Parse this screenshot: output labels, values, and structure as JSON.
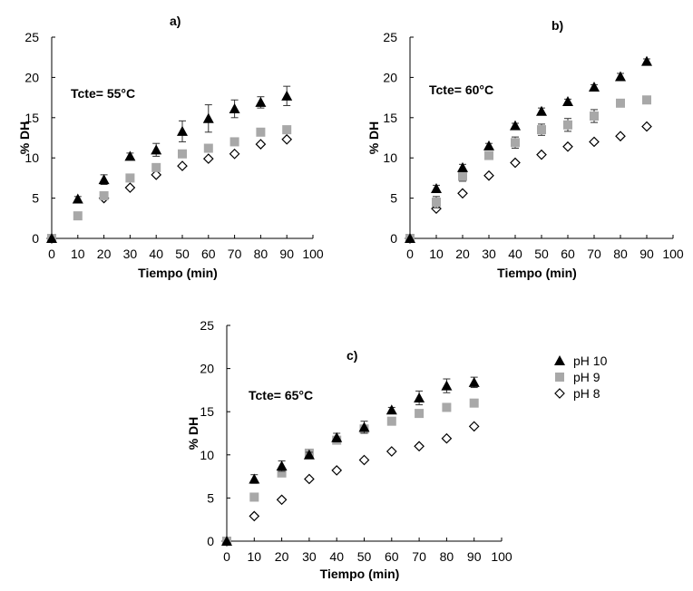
{
  "figure": {
    "legend": {
      "placement": "right of panel c",
      "entries": [
        {
          "label": "pH 10",
          "marker": "filled-triangle",
          "color": "#000000"
        },
        {
          "label": "pH 9",
          "marker": "gray-square",
          "color": "#a8a8a8"
        },
        {
          "label": "pH 8",
          "marker": "open-diamond",
          "color": "#000000"
        }
      ]
    }
  },
  "chart_data": [
    {
      "type": "scatter",
      "panel": "a)",
      "annotation": "Tcte= 55°C",
      "xlabel": "Tiempo (min)",
      "ylabel": "% DH",
      "xlim": [
        0,
        100
      ],
      "ylim": [
        0,
        25
      ],
      "xticks": [
        "0",
        "10",
        "20",
        "30",
        "40",
        "50",
        "60",
        "70",
        "80",
        "90",
        "100"
      ],
      "yticks": [
        "0",
        "5",
        "10",
        "15",
        "20",
        "25"
      ],
      "grid": false,
      "x": [
        0,
        10,
        20,
        30,
        40,
        50,
        60,
        70,
        80,
        90
      ],
      "series": [
        {
          "name": "pH 10",
          "values": [
            0,
            4.9,
            7.3,
            10.2,
            11.0,
            13.3,
            14.9,
            16.1,
            16.9,
            17.7
          ],
          "error": [
            0,
            0.3,
            0.6,
            0.4,
            0.8,
            1.3,
            1.7,
            1.1,
            0.7,
            1.2
          ]
        },
        {
          "name": "pH 9",
          "values": [
            0,
            2.8,
            5.3,
            7.5,
            8.8,
            10.5,
            11.2,
            12.0,
            13.2,
            13.5
          ],
          "error": [
            0,
            0,
            0.3,
            0,
            0.3,
            0,
            0,
            0,
            0,
            0
          ]
        },
        {
          "name": "pH 8",
          "values": [
            0,
            null,
            5.0,
            6.3,
            7.9,
            9.0,
            9.9,
            10.5,
            11.7,
            12.3
          ],
          "error": [
            0,
            0,
            0,
            0,
            0,
            0,
            0,
            0,
            0,
            0
          ]
        }
      ]
    },
    {
      "type": "scatter",
      "panel": "b)",
      "annotation": "Tcte= 60°C",
      "xlabel": "Tiempo (min)",
      "ylabel": "% DH",
      "xlim": [
        0,
        100
      ],
      "ylim": [
        0,
        25
      ],
      "xticks": [
        "0",
        "10",
        "20",
        "30",
        "40",
        "50",
        "60",
        "70",
        "80",
        "90",
        "100"
      ],
      "yticks": [
        "0",
        "5",
        "10",
        "15",
        "20",
        "25"
      ],
      "grid": false,
      "x": [
        0,
        10,
        20,
        30,
        40,
        50,
        60,
        70,
        80,
        90
      ],
      "series": [
        {
          "name": "pH 10",
          "values": [
            0,
            6.2,
            8.8,
            11.5,
            14.0,
            15.8,
            17.0,
            18.8,
            20.1,
            22.0
          ],
          "error": [
            0,
            0.4,
            0.4,
            0.3,
            0.3,
            0.4,
            0.3,
            0.3,
            0.4,
            0.3
          ]
        },
        {
          "name": "pH 9",
          "values": [
            0,
            4.5,
            7.7,
            10.3,
            11.9,
            13.5,
            14.1,
            15.2,
            16.8,
            17.2
          ],
          "error": [
            0,
            0.7,
            0.6,
            0,
            0.7,
            0.7,
            0.8,
            0.8,
            0,
            0
          ]
        },
        {
          "name": "pH 8",
          "values": [
            0,
            3.7,
            5.6,
            7.8,
            9.4,
            10.4,
            11.4,
            12.0,
            12.7,
            13.9
          ],
          "error": [
            0,
            0,
            0,
            0,
            0,
            0,
            0,
            0,
            0,
            0
          ]
        }
      ]
    },
    {
      "type": "scatter",
      "panel": "c)",
      "annotation": "Tcte= 65°C",
      "xlabel": "Tiempo (min)",
      "ylabel": "% DH",
      "xlim": [
        0,
        100
      ],
      "ylim": [
        0,
        25
      ],
      "xticks": [
        "0",
        "10",
        "20",
        "30",
        "40",
        "50",
        "60",
        "70",
        "80",
        "90",
        "100"
      ],
      "yticks": [
        "0",
        "5",
        "10",
        "15",
        "20",
        "25"
      ],
      "grid": false,
      "x": [
        0,
        10,
        20,
        30,
        40,
        50,
        60,
        70,
        80,
        90
      ],
      "series": [
        {
          "name": "pH 10",
          "values": [
            0,
            7.2,
            8.7,
            10.0,
            12.0,
            13.2,
            15.2,
            16.6,
            18.0,
            18.4
          ],
          "error": [
            0,
            0.5,
            0.6,
            0.3,
            0.5,
            0.7,
            0.3,
            0.8,
            0.8,
            0.6
          ]
        },
        {
          "name": "pH 9",
          "values": [
            0,
            5.1,
            7.9,
            10.2,
            11.7,
            13.0,
            13.9,
            14.8,
            15.5,
            16.0
          ],
          "error": [
            0,
            0,
            0,
            0,
            0,
            0,
            0,
            0,
            0.4,
            0.4
          ]
        },
        {
          "name": "pH 8",
          "values": [
            0,
            2.9,
            4.8,
            7.2,
            8.2,
            9.4,
            10.4,
            11.0,
            11.9,
            13.3
          ],
          "error": [
            0,
            0,
            0,
            0,
            0,
            0,
            0,
            0,
            0,
            0
          ]
        }
      ]
    }
  ]
}
